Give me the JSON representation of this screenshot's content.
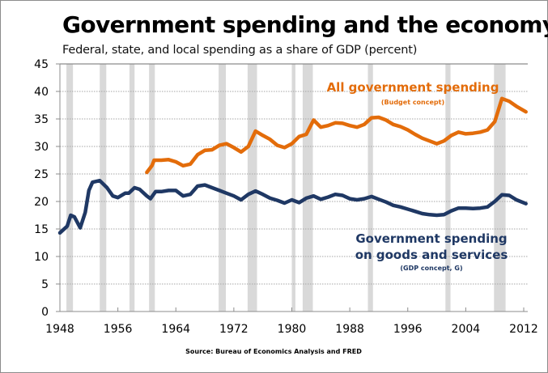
{
  "chart_data": {
    "type": "line",
    "title": "Government spending and the economy",
    "subtitle": "Federal, state, and local spending as a share of GDP (percent)",
    "xlabel": "",
    "ylabel": "",
    "source": "Source: Bureau of Economics Analysis and FRED",
    "xlim": [
      1948,
      2012.5
    ],
    "ylim": [
      0,
      45
    ],
    "x_ticks": [
      "1948",
      "1956",
      "1964",
      "1972",
      "1980",
      "1988",
      "1996",
      "2004",
      "2012"
    ],
    "x_tick_values": [
      1948,
      1956,
      1964,
      1972,
      1980,
      1988,
      1996,
      2004,
      2012
    ],
    "y_ticks": [
      "0",
      "5",
      "10",
      "15",
      "20",
      "25",
      "30",
      "35",
      "40",
      "45"
    ],
    "y_tick_values": [
      0,
      5,
      10,
      15,
      20,
      25,
      30,
      35,
      40,
      45
    ],
    "grid": "horizontal-dotted",
    "recessions": [
      [
        1948.9,
        1949.8
      ],
      [
        1953.5,
        1954.4
      ],
      [
        1957.6,
        1958.3
      ],
      [
        1960.3,
        1961.1
      ],
      [
        1969.9,
        1970.9
      ],
      [
        1973.9,
        1975.2
      ],
      [
        1980.0,
        1980.5
      ],
      [
        1981.5,
        1982.9
      ],
      [
        1990.5,
        1991.2
      ],
      [
        2001.2,
        2001.9
      ],
      [
        2007.9,
        2009.5
      ]
    ],
    "series": [
      {
        "name": "All government spending",
        "sublabel": "(Budget concept)",
        "color": "#e36c0a",
        "x": [
          1960,
          1960.7,
          1961,
          1962,
          1963,
          1964,
          1965,
          1966,
          1967,
          1968,
          1969,
          1970,
          1971,
          1972,
          1973,
          1974,
          1975,
          1976,
          1977,
          1978,
          1979,
          1980,
          1981,
          1982,
          1983,
          1984,
          1985,
          1986,
          1987,
          1988,
          1989,
          1990,
          1991,
          1992,
          1993,
          1994,
          1995,
          1996,
          1997,
          1998,
          1999,
          2000,
          2001,
          2002,
          2003,
          2004,
          2005,
          2006,
          2007,
          2008,
          2009,
          2010,
          2011,
          2012.3
        ],
        "values": [
          25.3,
          26.5,
          27.5,
          27.5,
          27.6,
          27.2,
          26.5,
          26.8,
          28.5,
          29.3,
          29.4,
          30.2,
          30.5,
          29.8,
          29.0,
          30.0,
          32.8,
          32.0,
          31.3,
          30.2,
          29.8,
          30.5,
          31.8,
          32.2,
          34.8,
          33.5,
          33.8,
          34.3,
          34.2,
          33.8,
          33.5,
          34.0,
          35.2,
          35.3,
          34.8,
          34.0,
          33.6,
          33.0,
          32.2,
          31.5,
          31.0,
          30.5,
          31.0,
          32.0,
          32.6,
          32.3,
          32.4,
          32.6,
          33.0,
          34.5,
          38.7,
          38.2,
          37.3,
          36.3
        ]
      },
      {
        "name": "Government spending on goods and services",
        "name_line1": "Government spending",
        "name_line2": "on goods and services",
        "sublabel": "(GDP concept, G)",
        "color": "#1f3864",
        "x": [
          1948,
          1949,
          1949.5,
          1950,
          1950.8,
          1951.5,
          1952,
          1952.5,
          1953.5,
          1954.5,
          1955.3,
          1956,
          1957,
          1957.5,
          1958.3,
          1959,
          1960,
          1960.5,
          1961.2,
          1962,
          1963,
          1964,
          1965,
          1966,
          1967,
          1968,
          1969,
          1970,
          1971,
          1972,
          1973,
          1974,
          1975,
          1976,
          1977,
          1978,
          1979,
          1980,
          1981,
          1982,
          1983,
          1984,
          1985,
          1986,
          1987,
          1988,
          1989,
          1990,
          1991,
          1992,
          1993,
          1994,
          1995,
          1996,
          1997,
          1998,
          1999,
          2000,
          2001,
          2002,
          2003,
          2004,
          2005,
          2006,
          2007,
          2008,
          2009,
          2010,
          2011,
          2012.3
        ],
        "values": [
          14.3,
          15.5,
          17.5,
          17.2,
          15.2,
          18.0,
          22.0,
          23.5,
          23.8,
          22.5,
          21.0,
          20.7,
          21.5,
          21.5,
          22.5,
          22.2,
          21.0,
          20.5,
          21.8,
          21.8,
          22.0,
          22.0,
          21.0,
          21.3,
          22.8,
          23.0,
          22.5,
          22.0,
          21.5,
          21.0,
          20.3,
          21.3,
          21.9,
          21.3,
          20.6,
          20.2,
          19.7,
          20.3,
          19.8,
          20.6,
          21.0,
          20.4,
          20.8,
          21.3,
          21.1,
          20.5,
          20.3,
          20.5,
          20.9,
          20.4,
          19.9,
          19.3,
          19.0,
          18.6,
          18.2,
          17.8,
          17.6,
          17.5,
          17.6,
          18.3,
          18.8,
          18.8,
          18.7,
          18.8,
          19.0,
          20.0,
          21.2,
          21.1,
          20.3,
          19.6
        ]
      }
    ]
  }
}
